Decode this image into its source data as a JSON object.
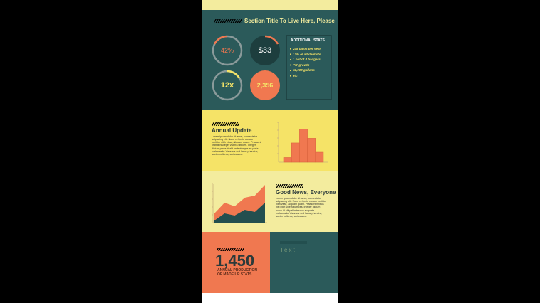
{
  "header": {
    "title": "Section Title To Live Here, Please"
  },
  "gauges": [
    {
      "label": "42%"
    },
    {
      "label": "$33"
    },
    {
      "label": "12x"
    },
    {
      "label": "2,356"
    }
  ],
  "stats": {
    "title": "ADDITIONAL STATS",
    "items": [
      "245 tacos per year",
      "12% of all dentists",
      "1 out of 4 badgers",
      "Y/Y growth",
      "32,000 gallons",
      "etc"
    ]
  },
  "annual": {
    "title": "Annual Update",
    "body": "Lorem ipsum dolor sit amet, consectetur adipiscing elit. Nunc vel justo cursus porttitor nibh vitae, aliquam quam. Praesent finibus nisl eget viverra ultrices. Integer dictum purus id elit pellentesque eu porta malesuada. Vivamus sed lacus pharetra, auctor nulla ac, varius arcu."
  },
  "news": {
    "title": "Good News, Everyone",
    "body": "Lorem ipsum dolor sit amet, consectetur adipiscing elit. Nunc vel justo cursus porttitor nibh vitae, aliquam quam. Praesent finibus nisl eget viverra ultrices. Integer dictum purus id elit pellentesque eu porta malesuada. Vivamus sed lacus pharetra, auctor nulla ac, varius arcu."
  },
  "highlight": {
    "number": "1,450",
    "caption": "ANNUAL PRODUCTION OF MADE UP STATS"
  },
  "side": {
    "text": "Text"
  },
  "chart_data": [
    {
      "type": "bar",
      "values": [
        7,
        29,
        50,
        36,
        15
      ],
      "ylim": [
        0,
        60
      ],
      "color": "#f07850"
    },
    {
      "type": "area",
      "ylim": [
        0,
        55
      ],
      "series": [
        {
          "color": "#f07850",
          "values": [
            13,
            28,
            23,
            35,
            38,
            53
          ]
        },
        {
          "color": "#234f4f",
          "values": [
            3,
            13,
            10,
            18,
            15,
            28
          ]
        }
      ]
    }
  ]
}
